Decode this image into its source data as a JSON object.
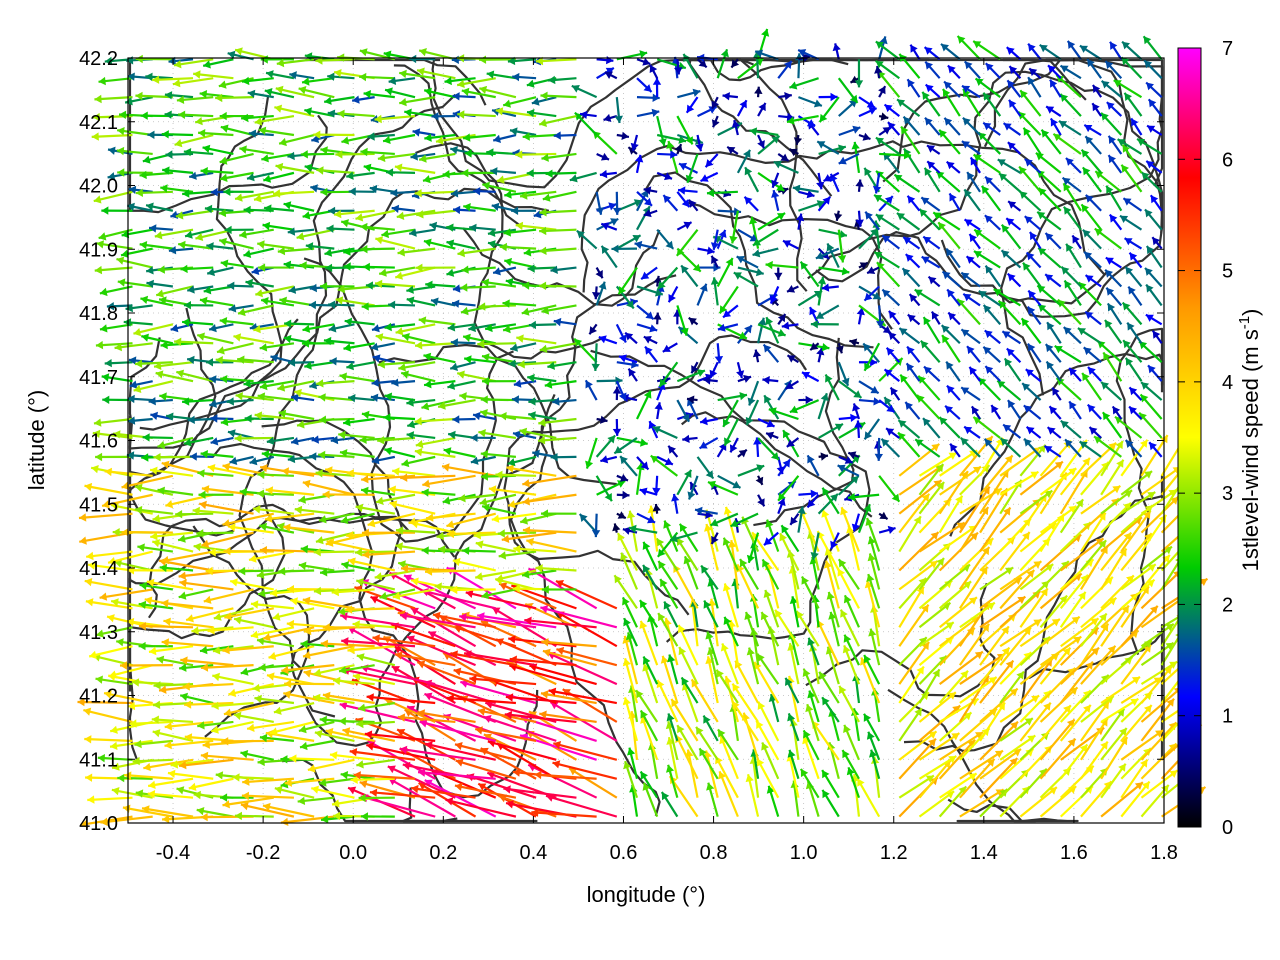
{
  "chart_data": {
    "type": "vector-field",
    "xlabel": "longitude (°)",
    "ylabel": "latitude (°)",
    "xlim": [
      -0.5,
      1.8
    ],
    "ylim": [
      41.0,
      42.2
    ],
    "x_ticks": [
      "-0.4",
      "-0.2",
      "0.0",
      "0.2",
      "0.4",
      "0.6",
      "0.8",
      "1.0",
      "1.2",
      "1.4",
      "1.6",
      "1.8"
    ],
    "y_ticks": [
      "41.0",
      "41.1",
      "41.2",
      "41.3",
      "41.4",
      "41.5",
      "41.6",
      "41.7",
      "41.8",
      "41.9",
      "42.0",
      "42.1",
      "42.2"
    ],
    "grid": "dotted",
    "colorbar": {
      "label": "1stlevel-wind speed (m s",
      "label_superscript": "-1",
      "label_close": ")",
      "range": [
        0,
        7
      ],
      "ticks": [
        "0",
        "1",
        "2",
        "3",
        "4",
        "5",
        "6",
        "7"
      ],
      "colors": [
        "#000000",
        "#0000ff",
        "#00cc00",
        "#ffff00",
        "#ff9900",
        "#ff0000",
        "#ff00ff"
      ]
    },
    "contour_color": "#333333",
    "arrow_regions": [
      {
        "lon": [
          -0.5,
          0.5
        ],
        "lat": [
          41.0,
          41.55
        ],
        "speed": [
          2.5,
          4.5
        ],
        "direction": "west"
      },
      {
        "lon": [
          0.1,
          0.65
        ],
        "lat": [
          41.0,
          41.35
        ],
        "speed": [
          4.5,
          6.8
        ],
        "direction": "west-northwest"
      },
      {
        "lon": [
          -0.5,
          0.5
        ],
        "lat": [
          41.55,
          42.2
        ],
        "speed": [
          1.5,
          3.2
        ],
        "direction": "west"
      },
      {
        "lon": [
          0.5,
          1.2
        ],
        "lat": [
          41.45,
          42.2
        ],
        "speed": [
          0.3,
          2.5
        ],
        "direction": "variable"
      },
      {
        "lon": [
          1.2,
          1.8
        ],
        "lat": [
          41.55,
          42.2
        ],
        "speed": [
          0.8,
          2.6
        ],
        "direction": "northwest"
      },
      {
        "lon": [
          0.6,
          1.2
        ],
        "lat": [
          41.0,
          41.45
        ],
        "speed": [
          2.0,
          4.0
        ],
        "direction": "north-northwest"
      },
      {
        "lon": [
          1.2,
          1.8
        ],
        "lat": [
          41.0,
          41.55
        ],
        "speed": [
          3.0,
          4.5
        ],
        "direction": "northeast"
      }
    ]
  }
}
